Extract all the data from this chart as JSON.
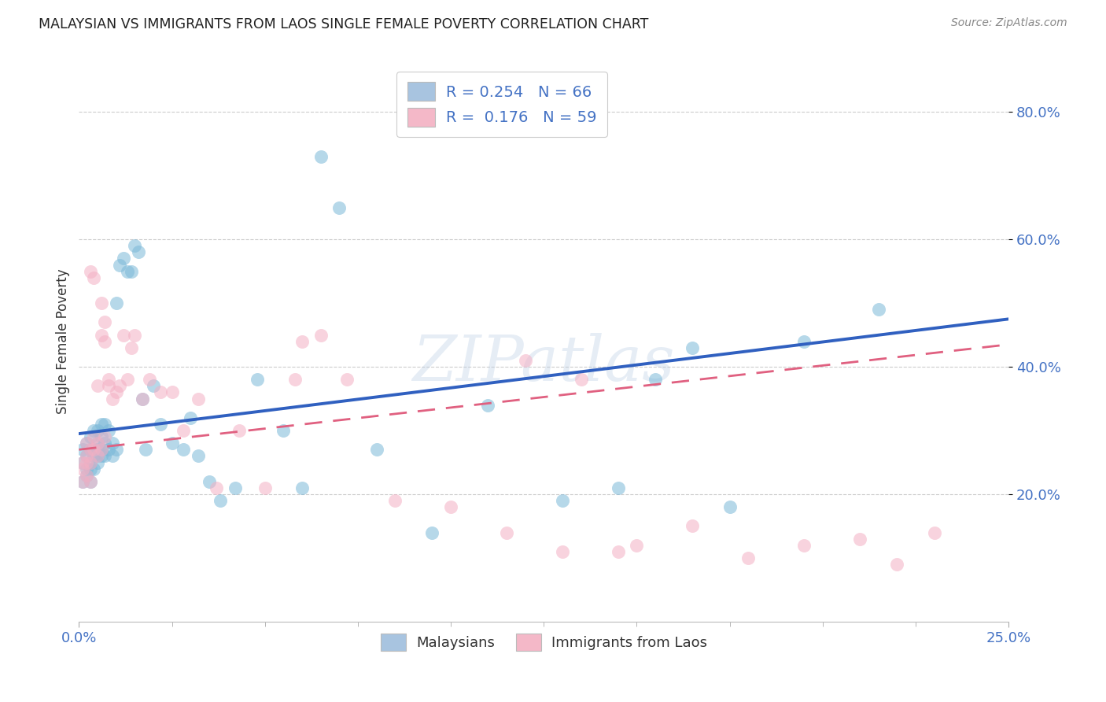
{
  "title": "MALAYSIAN VS IMMIGRANTS FROM LAOS SINGLE FEMALE POVERTY CORRELATION CHART",
  "source": "Source: ZipAtlas.com",
  "ylabel": "Single Female Poverty",
  "ytick_values": [
    0.2,
    0.4,
    0.6,
    0.8
  ],
  "xlim": [
    0.0,
    0.25
  ],
  "ylim": [
    0.0,
    0.88
  ],
  "legend_entries": [
    {
      "label": "R = 0.254   N = 66",
      "color": "#a8c4e0"
    },
    {
      "label": "R =  0.176   N = 59",
      "color": "#f4b8c8"
    }
  ],
  "legend_bottom": [
    "Malaysians",
    "Immigrants from Laos"
  ],
  "blue_color": "#7ab8d8",
  "pink_color": "#f4b0c4",
  "trend_blue": "#3060c0",
  "trend_pink": "#e06080",
  "watermark": "ZIPatlas",
  "malaysians_x": [
    0.001,
    0.001,
    0.001,
    0.002,
    0.002,
    0.002,
    0.002,
    0.003,
    0.003,
    0.003,
    0.003,
    0.003,
    0.004,
    0.004,
    0.004,
    0.004,
    0.005,
    0.005,
    0.005,
    0.005,
    0.005,
    0.006,
    0.006,
    0.006,
    0.006,
    0.007,
    0.007,
    0.007,
    0.008,
    0.008,
    0.009,
    0.009,
    0.01,
    0.01,
    0.011,
    0.012,
    0.013,
    0.014,
    0.015,
    0.016,
    0.017,
    0.018,
    0.02,
    0.022,
    0.025,
    0.028,
    0.03,
    0.032,
    0.035,
    0.038,
    0.042,
    0.048,
    0.055,
    0.06,
    0.065,
    0.07,
    0.08,
    0.095,
    0.11,
    0.13,
    0.145,
    0.155,
    0.165,
    0.175,
    0.195,
    0.215
  ],
  "malaysians_y": [
    0.25,
    0.27,
    0.22,
    0.24,
    0.26,
    0.23,
    0.28,
    0.25,
    0.27,
    0.22,
    0.29,
    0.24,
    0.26,
    0.27,
    0.24,
    0.3,
    0.26,
    0.28,
    0.25,
    0.27,
    0.3,
    0.27,
    0.29,
    0.26,
    0.31,
    0.28,
    0.31,
    0.26,
    0.3,
    0.27,
    0.28,
    0.26,
    0.5,
    0.27,
    0.56,
    0.57,
    0.55,
    0.55,
    0.59,
    0.58,
    0.35,
    0.27,
    0.37,
    0.31,
    0.28,
    0.27,
    0.32,
    0.26,
    0.22,
    0.19,
    0.21,
    0.38,
    0.3,
    0.21,
    0.73,
    0.65,
    0.27,
    0.14,
    0.34,
    0.19,
    0.21,
    0.38,
    0.43,
    0.18,
    0.44,
    0.49
  ],
  "laos_x": [
    0.001,
    0.001,
    0.001,
    0.002,
    0.002,
    0.002,
    0.002,
    0.003,
    0.003,
    0.003,
    0.003,
    0.004,
    0.004,
    0.004,
    0.005,
    0.005,
    0.005,
    0.006,
    0.006,
    0.006,
    0.007,
    0.007,
    0.007,
    0.008,
    0.008,
    0.009,
    0.01,
    0.011,
    0.012,
    0.013,
    0.014,
    0.015,
    0.017,
    0.019,
    0.022,
    0.025,
    0.028,
    0.032,
    0.037,
    0.043,
    0.05,
    0.058,
    0.065,
    0.072,
    0.085,
    0.1,
    0.115,
    0.13,
    0.15,
    0.165,
    0.18,
    0.195,
    0.21,
    0.22,
    0.23,
    0.12,
    0.135,
    0.145,
    0.06
  ],
  "laos_y": [
    0.25,
    0.22,
    0.24,
    0.26,
    0.23,
    0.28,
    0.25,
    0.25,
    0.27,
    0.22,
    0.55,
    0.54,
    0.27,
    0.29,
    0.26,
    0.28,
    0.37,
    0.5,
    0.45,
    0.27,
    0.47,
    0.44,
    0.29,
    0.37,
    0.38,
    0.35,
    0.36,
    0.37,
    0.45,
    0.38,
    0.43,
    0.45,
    0.35,
    0.38,
    0.36,
    0.36,
    0.3,
    0.35,
    0.21,
    0.3,
    0.21,
    0.38,
    0.45,
    0.38,
    0.19,
    0.18,
    0.14,
    0.11,
    0.12,
    0.15,
    0.1,
    0.12,
    0.13,
    0.09,
    0.14,
    0.41,
    0.38,
    0.11,
    0.44
  ],
  "trend_blue_x0": 0.0,
  "trend_blue_y0": 0.295,
  "trend_blue_x1": 0.25,
  "trend_blue_y1": 0.475,
  "trend_pink_x0": 0.0,
  "trend_pink_y0": 0.27,
  "trend_pink_x1": 0.25,
  "trend_pink_y1": 0.435
}
